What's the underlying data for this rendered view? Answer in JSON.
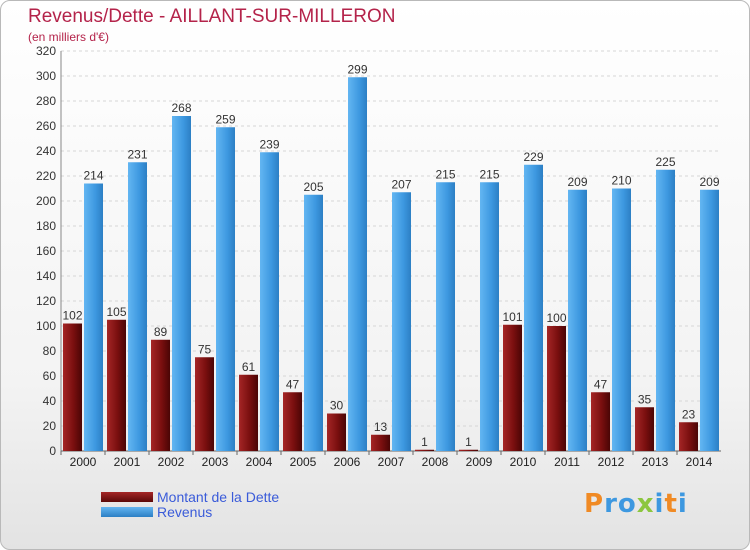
{
  "title": "Revenus/Dette - AILLANT-SUR-MILLERON",
  "subtitle": "(en milliers d'€)",
  "logo": [
    "P",
    "r",
    "o",
    "x",
    "i",
    "t",
    "i"
  ],
  "colors": {
    "dette": "#7a0f0f",
    "revenus": "#3d98e0",
    "title": "#b4234a",
    "legend_text": "#3a5bd9",
    "logo": [
      "#f08a24",
      "#3d98e0",
      "#3d98e0",
      "#8cc63f",
      "#3d98e0",
      "#f08a24",
      "#3d98e0"
    ]
  },
  "chart_data": {
    "type": "bar",
    "title": "Revenus/Dette - AILLANT-SUR-MILLERON",
    "ylabel": "(en milliers d'€)",
    "xlabel": "",
    "ylim": [
      0,
      320
    ],
    "yticks": [
      0,
      20,
      40,
      60,
      80,
      100,
      120,
      140,
      160,
      180,
      200,
      220,
      240,
      260,
      280,
      300,
      320
    ],
    "grid": true,
    "legend_position": "bottom-left",
    "categories": [
      "2000",
      "2001",
      "2002",
      "2003",
      "2004",
      "2005",
      "2006",
      "2007",
      "2008",
      "2009",
      "2010",
      "2011",
      "2012",
      "2013",
      "2014"
    ],
    "series": [
      {
        "name": "Montant de la Dette",
        "values": [
          102,
          105,
          89,
          75,
          61,
          47,
          30,
          13,
          1,
          1,
          101,
          100,
          47,
          35,
          23
        ]
      },
      {
        "name": "Revenus",
        "values": [
          214,
          231,
          268,
          259,
          239,
          205,
          299,
          207,
          215,
          215,
          229,
          209,
          210,
          225,
          209
        ]
      }
    ]
  }
}
